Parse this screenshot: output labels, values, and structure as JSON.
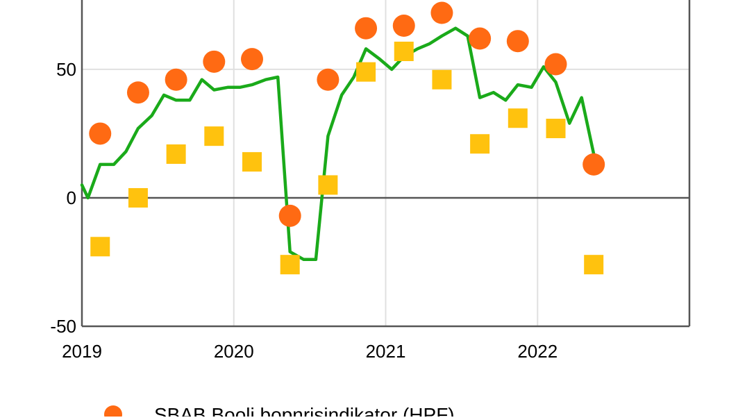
{
  "chart_data": {
    "type": "scatter",
    "x_ticks": [
      "2019",
      "2020",
      "2021",
      "2022"
    ],
    "y_ticks": [
      "-50",
      "0",
      "50"
    ],
    "ylim": [
      -50,
      77
    ],
    "xlim": [
      2019.0,
      2023.0
    ],
    "grid": true,
    "zero_line": true,
    "series": [
      {
        "name": "SBAB Booli bopnrisindikator (HPF)",
        "kind": "scatter-circle",
        "color": "#ff6a13",
        "points": [
          {
            "x": 2019.12,
            "y": 25
          },
          {
            "x": 2019.37,
            "y": 41
          },
          {
            "x": 2019.62,
            "y": 46
          },
          {
            "x": 2019.87,
            "y": 53
          },
          {
            "x": 2020.12,
            "y": 54
          },
          {
            "x": 2020.37,
            "y": -7
          },
          {
            "x": 2020.62,
            "y": 46
          },
          {
            "x": 2020.87,
            "y": 66
          },
          {
            "x": 2021.12,
            "y": 67
          },
          {
            "x": 2021.37,
            "y": 72
          },
          {
            "x": 2021.62,
            "y": 62
          },
          {
            "x": 2021.87,
            "y": 61
          },
          {
            "x": 2022.12,
            "y": 52
          },
          {
            "x": 2022.37,
            "y": 13
          }
        ]
      },
      {
        "name": "",
        "kind": "scatter-square",
        "color": "#ffc20e",
        "points": [
          {
            "x": 2019.12,
            "y": -19
          },
          {
            "x": 2019.37,
            "y": 0
          },
          {
            "x": 2019.62,
            "y": 17
          },
          {
            "x": 2019.87,
            "y": 24
          },
          {
            "x": 2020.12,
            "y": 14
          },
          {
            "x": 2020.37,
            "y": -26
          },
          {
            "x": 2020.62,
            "y": 5
          },
          {
            "x": 2020.87,
            "y": 49
          },
          {
            "x": 2021.12,
            "y": 57
          },
          {
            "x": 2021.37,
            "y": 46
          },
          {
            "x": 2021.62,
            "y": 21
          },
          {
            "x": 2021.87,
            "y": 31
          },
          {
            "x": 2022.12,
            "y": 27
          },
          {
            "x": 2022.37,
            "y": -26
          }
        ]
      },
      {
        "name": "",
        "kind": "line",
        "color": "#1aaa1a",
        "points": [
          {
            "x": 2019.0,
            "y": 5
          },
          {
            "x": 2019.04,
            "y": 0
          },
          {
            "x": 2019.12,
            "y": 13
          },
          {
            "x": 2019.21,
            "y": 13
          },
          {
            "x": 2019.29,
            "y": 18
          },
          {
            "x": 2019.37,
            "y": 27
          },
          {
            "x": 2019.46,
            "y": 32
          },
          {
            "x": 2019.54,
            "y": 40
          },
          {
            "x": 2019.62,
            "y": 38
          },
          {
            "x": 2019.71,
            "y": 38
          },
          {
            "x": 2019.79,
            "y": 46
          },
          {
            "x": 2019.87,
            "y": 42
          },
          {
            "x": 2019.96,
            "y": 43
          },
          {
            "x": 2020.04,
            "y": 43
          },
          {
            "x": 2020.12,
            "y": 44
          },
          {
            "x": 2020.21,
            "y": 46
          },
          {
            "x": 2020.29,
            "y": 47
          },
          {
            "x": 2020.37,
            "y": -21
          },
          {
            "x": 2020.46,
            "y": -24
          },
          {
            "x": 2020.54,
            "y": -24
          },
          {
            "x": 2020.62,
            "y": 24
          },
          {
            "x": 2020.71,
            "y": 40
          },
          {
            "x": 2020.79,
            "y": 47
          },
          {
            "x": 2020.87,
            "y": 58
          },
          {
            "x": 2020.96,
            "y": 54
          },
          {
            "x": 2021.04,
            "y": 50
          },
          {
            "x": 2021.12,
            "y": 55
          },
          {
            "x": 2021.21,
            "y": 58
          },
          {
            "x": 2021.29,
            "y": 60
          },
          {
            "x": 2021.37,
            "y": 63
          },
          {
            "x": 2021.46,
            "y": 66
          },
          {
            "x": 2021.54,
            "y": 63
          },
          {
            "x": 2021.62,
            "y": 39
          },
          {
            "x": 2021.71,
            "y": 41
          },
          {
            "x": 2021.79,
            "y": 38
          },
          {
            "x": 2021.87,
            "y": 44
          },
          {
            "x": 2021.96,
            "y": 43
          },
          {
            "x": 2022.04,
            "y": 51
          },
          {
            "x": 2022.12,
            "y": 45
          },
          {
            "x": 2022.21,
            "y": 29
          },
          {
            "x": 2022.29,
            "y": 39
          },
          {
            "x": 2022.37,
            "y": 17
          }
        ]
      }
    ]
  },
  "legend": {
    "label": "SBAB Booli bopnrisindikator (HPF)",
    "color": "#ff6a13"
  },
  "colors": {
    "grid": "#e0e0e0",
    "axis": "#555555",
    "zero_line": "#555555"
  }
}
